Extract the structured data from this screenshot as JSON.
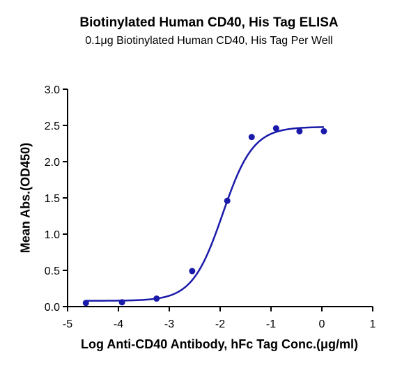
{
  "chart_data": {
    "type": "scatter",
    "title": "Biotinylated Human CD40, His Tag ELISA",
    "subtitle": "0.1μg Biotinylated Human CD40, His Tag Per Well",
    "xlabel": "Log Anti-CD40 Antibody, hFc Tag Conc.(μg/ml)",
    "ylabel": "Mean Abs.(OD450)",
    "xlim": [
      -5,
      1
    ],
    "ylim": [
      0,
      3.0
    ],
    "xticks": [
      "-5",
      "-4",
      "-3",
      "-2",
      "-1",
      "0",
      "1"
    ],
    "yticks": [
      "0.0",
      "0.5",
      "1.0",
      "1.5",
      "2.0",
      "2.5",
      "3.0"
    ],
    "grid": false,
    "legend": null,
    "series": [
      {
        "name": "Mean Abs.(OD450)",
        "color": "#1a1aaa",
        "marker": "circle",
        "x": [
          -4.64,
          -3.93,
          -3.25,
          -2.55,
          -1.86,
          -1.38,
          -0.9,
          -0.44,
          0.04
        ],
        "y": [
          0.05,
          0.06,
          0.11,
          0.49,
          1.46,
          2.34,
          2.46,
          2.42,
          2.42
        ]
      }
    ],
    "fit": {
      "type": "4PL sigmoid",
      "color": "#1a1aaa",
      "bottom": 0.08,
      "top": 2.48,
      "logEC50": -1.95,
      "hill": 1.45,
      "x_range": [
        -4.64,
        0.04
      ]
    }
  }
}
